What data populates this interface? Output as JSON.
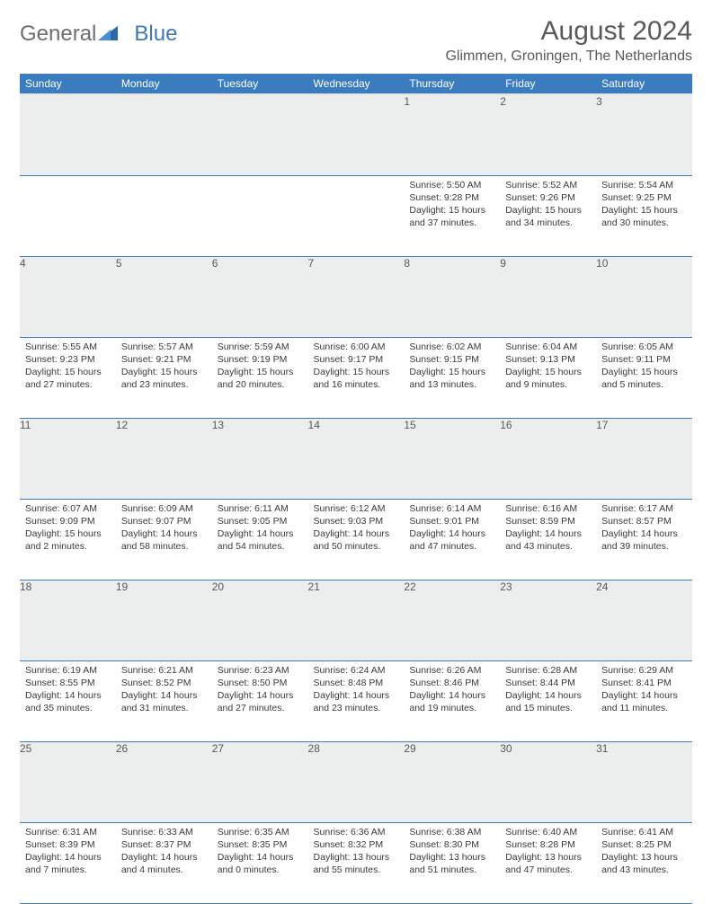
{
  "brand": {
    "part1": "General",
    "part2": "Blue"
  },
  "title": "August 2024",
  "location": "Glimmen, Groningen, The Netherlands",
  "colors": {
    "header_bg": "#3b7cbf",
    "header_text": "#ffffff",
    "daynum_bg": "#eceded",
    "rule": "#3b7cbf",
    "body_text": "#333333",
    "title_text": "#58595b"
  },
  "fonts": {
    "title_size_pt": 22,
    "location_size_pt": 12,
    "dayhead_size_pt": 9,
    "cell_size_pt": 8
  },
  "day_headers": [
    "Sunday",
    "Monday",
    "Tuesday",
    "Wednesday",
    "Thursday",
    "Friday",
    "Saturday"
  ],
  "weeks": [
    {
      "nums": [
        "",
        "",
        "",
        "",
        "1",
        "2",
        "3"
      ],
      "cells": [
        null,
        null,
        null,
        null,
        {
          "sunrise": "Sunrise: 5:50 AM",
          "sunset": "Sunset: 9:28 PM",
          "day1": "Daylight: 15 hours",
          "day2": "and 37 minutes."
        },
        {
          "sunrise": "Sunrise: 5:52 AM",
          "sunset": "Sunset: 9:26 PM",
          "day1": "Daylight: 15 hours",
          "day2": "and 34 minutes."
        },
        {
          "sunrise": "Sunrise: 5:54 AM",
          "sunset": "Sunset: 9:25 PM",
          "day1": "Daylight: 15 hours",
          "day2": "and 30 minutes."
        }
      ]
    },
    {
      "nums": [
        "4",
        "5",
        "6",
        "7",
        "8",
        "9",
        "10"
      ],
      "cells": [
        {
          "sunrise": "Sunrise: 5:55 AM",
          "sunset": "Sunset: 9:23 PM",
          "day1": "Daylight: 15 hours",
          "day2": "and 27 minutes."
        },
        {
          "sunrise": "Sunrise: 5:57 AM",
          "sunset": "Sunset: 9:21 PM",
          "day1": "Daylight: 15 hours",
          "day2": "and 23 minutes."
        },
        {
          "sunrise": "Sunrise: 5:59 AM",
          "sunset": "Sunset: 9:19 PM",
          "day1": "Daylight: 15 hours",
          "day2": "and 20 minutes."
        },
        {
          "sunrise": "Sunrise: 6:00 AM",
          "sunset": "Sunset: 9:17 PM",
          "day1": "Daylight: 15 hours",
          "day2": "and 16 minutes."
        },
        {
          "sunrise": "Sunrise: 6:02 AM",
          "sunset": "Sunset: 9:15 PM",
          "day1": "Daylight: 15 hours",
          "day2": "and 13 minutes."
        },
        {
          "sunrise": "Sunrise: 6:04 AM",
          "sunset": "Sunset: 9:13 PM",
          "day1": "Daylight: 15 hours",
          "day2": "and 9 minutes."
        },
        {
          "sunrise": "Sunrise: 6:05 AM",
          "sunset": "Sunset: 9:11 PM",
          "day1": "Daylight: 15 hours",
          "day2": "and 5 minutes."
        }
      ]
    },
    {
      "nums": [
        "11",
        "12",
        "13",
        "14",
        "15",
        "16",
        "17"
      ],
      "cells": [
        {
          "sunrise": "Sunrise: 6:07 AM",
          "sunset": "Sunset: 9:09 PM",
          "day1": "Daylight: 15 hours",
          "day2": "and 2 minutes."
        },
        {
          "sunrise": "Sunrise: 6:09 AM",
          "sunset": "Sunset: 9:07 PM",
          "day1": "Daylight: 14 hours",
          "day2": "and 58 minutes."
        },
        {
          "sunrise": "Sunrise: 6:11 AM",
          "sunset": "Sunset: 9:05 PM",
          "day1": "Daylight: 14 hours",
          "day2": "and 54 minutes."
        },
        {
          "sunrise": "Sunrise: 6:12 AM",
          "sunset": "Sunset: 9:03 PM",
          "day1": "Daylight: 14 hours",
          "day2": "and 50 minutes."
        },
        {
          "sunrise": "Sunrise: 6:14 AM",
          "sunset": "Sunset: 9:01 PM",
          "day1": "Daylight: 14 hours",
          "day2": "and 47 minutes."
        },
        {
          "sunrise": "Sunrise: 6:16 AM",
          "sunset": "Sunset: 8:59 PM",
          "day1": "Daylight: 14 hours",
          "day2": "and 43 minutes."
        },
        {
          "sunrise": "Sunrise: 6:17 AM",
          "sunset": "Sunset: 8:57 PM",
          "day1": "Daylight: 14 hours",
          "day2": "and 39 minutes."
        }
      ]
    },
    {
      "nums": [
        "18",
        "19",
        "20",
        "21",
        "22",
        "23",
        "24"
      ],
      "cells": [
        {
          "sunrise": "Sunrise: 6:19 AM",
          "sunset": "Sunset: 8:55 PM",
          "day1": "Daylight: 14 hours",
          "day2": "and 35 minutes."
        },
        {
          "sunrise": "Sunrise: 6:21 AM",
          "sunset": "Sunset: 8:52 PM",
          "day1": "Daylight: 14 hours",
          "day2": "and 31 minutes."
        },
        {
          "sunrise": "Sunrise: 6:23 AM",
          "sunset": "Sunset: 8:50 PM",
          "day1": "Daylight: 14 hours",
          "day2": "and 27 minutes."
        },
        {
          "sunrise": "Sunrise: 6:24 AM",
          "sunset": "Sunset: 8:48 PM",
          "day1": "Daylight: 14 hours",
          "day2": "and 23 minutes."
        },
        {
          "sunrise": "Sunrise: 6:26 AM",
          "sunset": "Sunset: 8:46 PM",
          "day1": "Daylight: 14 hours",
          "day2": "and 19 minutes."
        },
        {
          "sunrise": "Sunrise: 6:28 AM",
          "sunset": "Sunset: 8:44 PM",
          "day1": "Daylight: 14 hours",
          "day2": "and 15 minutes."
        },
        {
          "sunrise": "Sunrise: 6:29 AM",
          "sunset": "Sunset: 8:41 PM",
          "day1": "Daylight: 14 hours",
          "day2": "and 11 minutes."
        }
      ]
    },
    {
      "nums": [
        "25",
        "26",
        "27",
        "28",
        "29",
        "30",
        "31"
      ],
      "cells": [
        {
          "sunrise": "Sunrise: 6:31 AM",
          "sunset": "Sunset: 8:39 PM",
          "day1": "Daylight: 14 hours",
          "day2": "and 7 minutes."
        },
        {
          "sunrise": "Sunrise: 6:33 AM",
          "sunset": "Sunset: 8:37 PM",
          "day1": "Daylight: 14 hours",
          "day2": "and 4 minutes."
        },
        {
          "sunrise": "Sunrise: 6:35 AM",
          "sunset": "Sunset: 8:35 PM",
          "day1": "Daylight: 14 hours",
          "day2": "and 0 minutes."
        },
        {
          "sunrise": "Sunrise: 6:36 AM",
          "sunset": "Sunset: 8:32 PM",
          "day1": "Daylight: 13 hours",
          "day2": "and 55 minutes."
        },
        {
          "sunrise": "Sunrise: 6:38 AM",
          "sunset": "Sunset: 8:30 PM",
          "day1": "Daylight: 13 hours",
          "day2": "and 51 minutes."
        },
        {
          "sunrise": "Sunrise: 6:40 AM",
          "sunset": "Sunset: 8:28 PM",
          "day1": "Daylight: 13 hours",
          "day2": "and 47 minutes."
        },
        {
          "sunrise": "Sunrise: 6:41 AM",
          "sunset": "Sunset: 8:25 PM",
          "day1": "Daylight: 13 hours",
          "day2": "and 43 minutes."
        }
      ]
    }
  ]
}
